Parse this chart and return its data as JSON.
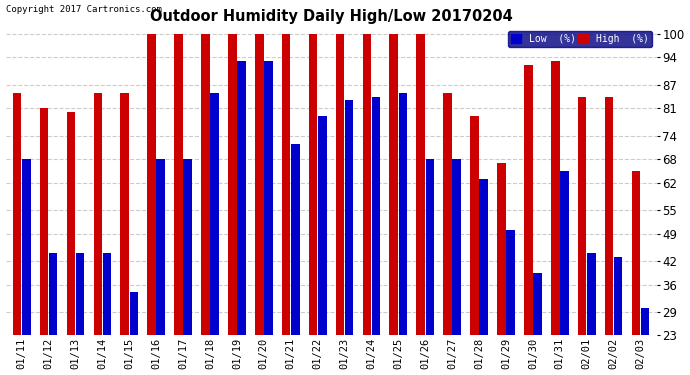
{
  "title": "Outdoor Humidity Daily High/Low 20170204",
  "copyright": "Copyright 2017 Cartronics.com",
  "legend_low_label": "Low  (%)",
  "legend_high_label": "High  (%)",
  "low_color": "#0000cc",
  "high_color": "#cc0000",
  "background_color": "#ffffff",
  "plot_background_color": "#ffffff",
  "grid_color": "#cccccc",
  "yticks": [
    23,
    29,
    36,
    42,
    49,
    55,
    62,
    68,
    74,
    81,
    87,
    94,
    100
  ],
  "ylim": [
    23,
    102
  ],
  "ybase": 23,
  "dates": [
    "01/11",
    "01/12",
    "01/13",
    "01/14",
    "01/15",
    "01/16",
    "01/17",
    "01/18",
    "01/19",
    "01/20",
    "01/21",
    "01/22",
    "01/23",
    "01/24",
    "01/25",
    "01/26",
    "01/27",
    "01/28",
    "01/29",
    "01/30",
    "01/31",
    "02/01",
    "02/02",
    "02/03"
  ],
  "high_values": [
    85,
    81,
    80,
    85,
    85,
    100,
    100,
    100,
    100,
    100,
    100,
    100,
    100,
    100,
    100,
    100,
    85,
    79,
    67,
    92,
    93,
    84,
    84,
    65
  ],
  "low_values": [
    68,
    44,
    44,
    44,
    34,
    68,
    68,
    85,
    93,
    93,
    72,
    79,
    83,
    84,
    85,
    68,
    68,
    63,
    50,
    39,
    65,
    44,
    43,
    30
  ]
}
